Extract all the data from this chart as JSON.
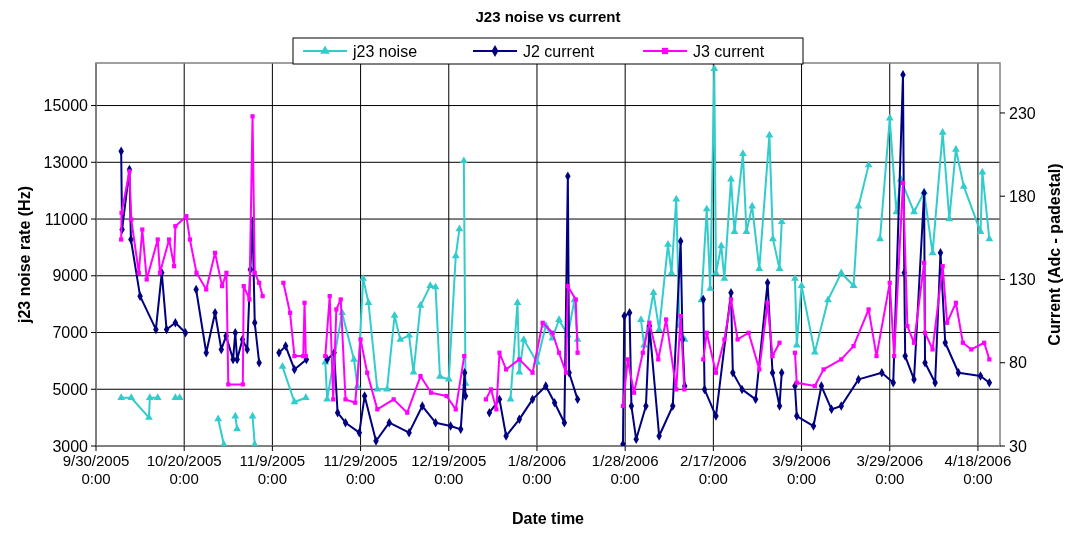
{
  "chart_data": {
    "type": "line",
    "title": "J23 noise vs current",
    "xlabel": "Date time",
    "ylabel": "j23 noise rate (Hz)",
    "y2label": "Current (Adc - padestal)",
    "xlim": [
      "2005-09-30",
      "2006-04-23"
    ],
    "xticks": [
      {
        "value": "2005-09-30",
        "label": "9/30/2005 0:00"
      },
      {
        "value": "2005-10-20",
        "label": "10/20/2005 0:00"
      },
      {
        "value": "2005-11-09",
        "label": "11/9/2005 0:00"
      },
      {
        "value": "2005-11-29",
        "label": "11/29/2005 0:00"
      },
      {
        "value": "2005-12-19",
        "label": "12/19/2005 0:00"
      },
      {
        "value": "2006-01-08",
        "label": "1/8/2006 0:00"
      },
      {
        "value": "2006-01-28",
        "label": "1/28/2006 0:00"
      },
      {
        "value": "2006-02-17",
        "label": "2/17/2006 0:00"
      },
      {
        "value": "2006-03-09",
        "label": "3/9/2006 0:00"
      },
      {
        "value": "2006-03-29",
        "label": "3/29/2006 0:00"
      },
      {
        "value": "2006-04-18",
        "label": "4/18/2006 0:00"
      }
    ],
    "ylim": [
      3000,
      16500
    ],
    "yticks": [
      3000,
      5000,
      7000,
      9000,
      11000,
      13000,
      15000
    ],
    "y2lim": [
      30,
      260
    ],
    "y2ticks": [
      30,
      80,
      130,
      180,
      230
    ],
    "grid": true,
    "legend": "top",
    "line_style": "solid",
    "series": [
      {
        "name": "j23 noise",
        "color": "#33cccc",
        "marker": "triangle",
        "x": [
          "2005-10-05T17:00",
          "2005-10-08",
          "2005-10-12",
          "2005-10-12T05:00",
          "2005-10-14",
          "2005-10-16",
          "2005-10-18",
          "2005-10-19",
          "2005-10-23",
          "2005-10-27T17:00",
          "2005-10-29",
          "2005-10-30T12:00",
          "2005-10-31T14:00",
          "2005-11-01",
          "2005-11-02T12:00",
          "2005-11-04T12:00",
          "2005-11-05",
          "2005-11-08",
          "2005-11-11T07:00",
          "2005-11-14",
          "2005-11-16T14:00",
          "2005-11-19",
          "2005-11-21",
          "2005-11-21T10:00",
          "2005-11-24T19:00",
          "2005-11-27T12:00",
          "2005-11-28T07:00",
          "2005-11-29T14:00",
          "2005-11-30T19:00",
          "2005-12-02T19:00",
          "2005-12-05",
          "2005-12-06T17:00",
          "2005-12-08",
          "2005-12-10",
          "2005-12-11",
          "2005-12-12T14:00",
          "2005-12-14T19:00",
          "2005-12-16",
          "2005-12-17",
          "2005-12-19",
          "2005-12-20T14:00",
          "2005-12-21T10:00",
          "2005-12-22T02:00",
          "2005-12-22T10:00",
          "2005-12-22T19:00",
          "2005-12-28",
          "2006-01-02",
          "2006-01-03T14:00",
          "2006-01-04",
          "2006-01-05",
          "2006-01-08",
          "2006-01-10",
          "2006-01-11T12:00",
          "2006-01-13",
          "2006-01-15",
          "2006-01-16T12:00",
          "2006-01-17T05:00",
          "2006-01-23",
          "2006-01-31T14:00",
          "2006-02-01T07:00",
          "2006-02-03T10:00",
          "2006-02-04T17:00",
          "2006-02-06T17:00",
          "2006-02-07T12:00",
          "2006-02-08T14:00",
          "2006-02-09T07:00",
          "2006-02-10T12:00",
          "2006-02-12T12:00",
          "2006-02-14T07:00",
          "2006-02-15T12:00",
          "2006-02-16T07:00",
          "2006-02-17T05:00",
          "2006-02-17T14:00",
          "2006-02-18T19:00",
          "2006-02-19T12:00",
          "2006-02-21",
          "2006-02-21T19:00",
          "2006-02-23T17:00",
          "2006-02-24T12:00",
          "2006-02-25T19:00",
          "2006-02-27T10:00",
          "2006-03-01T17:00",
          "2006-03-02T12:00",
          "2006-03-04",
          "2006-03-04T12:00",
          "2006-03-06",
          "2006-03-07T12:00",
          "2006-03-07T22:00",
          "2006-03-09",
          "2006-03-12",
          "2006-03-15",
          "2006-03-18",
          "2006-03-20T19:00",
          "2006-03-21T22:00",
          "2006-03-24T05:00",
          "2006-03-26",
          "2006-03-26T19:00",
          "2006-03-29",
          "2006-03-30T12:00",
          "2006-03-31T12:00",
          "2006-04-03T12:00",
          "2006-04-05T19:00",
          "2006-04-07T17:00",
          "2006-04-10",
          "2006-04-11T12:00",
          "2006-04-13",
          "2006-04-14T19:00",
          "2006-04-18T14:00",
          "2006-04-19",
          "2006-04-20T14:00"
        ],
        "values": [
          4700,
          4700,
          4000,
          4700,
          4700,
          null,
          4700,
          4700,
          null,
          3950,
          3050,
          null,
          4050,
          3600,
          null,
          4050,
          3050,
          null,
          5800,
          4550,
          4700,
          null,
          5950,
          4650,
          7700,
          6050,
          5100,
          8900,
          8050,
          5000,
          5000,
          7600,
          6750,
          6900,
          5600,
          7950,
          8650,
          8600,
          5450,
          5350,
          9700,
          10650,
          null,
          13050,
          5200,
          null,
          4650,
          8050,
          5600,
          6750,
          5950,
          7250,
          6800,
          7450,
          6900,
          8150,
          6750,
          null,
          7450,
          6550,
          8400,
          7100,
          10100,
          9100,
          11700,
          7250,
          6750,
          null,
          8150,
          11350,
          8550,
          16300,
          9100,
          10050,
          8900,
          12400,
          10550,
          13300,
          10550,
          11450,
          9250,
          13950,
          10300,
          9250,
          10900,
          null,
          8900,
          6550,
          8650,
          6300,
          8150,
          9100,
          8650,
          11450,
          12900,
          null,
          10300,
          14550,
          11250,
          12400,
          11250,
          11950,
          9800,
          14050,
          11000,
          13450,
          12150,
          10550,
          12650,
          10300
        ]
      },
      {
        "name": "J2 current",
        "color": "#000080",
        "marker": "diamond",
        "axis": "y2",
        "x": [
          "2005-10-05T17:00",
          "2005-10-05T22:00",
          "2005-10-07T14:00",
          "2005-10-07T22:00",
          "2005-10-10",
          "2005-10-13T14:00",
          "2005-10-14T22:00",
          "2005-10-16",
          "2005-10-18",
          "2005-10-20T07:00",
          "2005-10-21T12:00",
          "2005-10-22T17:00",
          "2005-10-25",
          "2005-10-27",
          "2005-10-28T10:00",
          "2005-10-29T12:00",
          "2005-10-31T02:00",
          "2005-10-31T14:00",
          "2005-11-01",
          "2005-11-02T05:00",
          "2005-11-03T07:00",
          "2005-11-04",
          "2005-11-04T12:00",
          "2005-11-05",
          "2005-11-06",
          "2005-11-08",
          "2005-11-10T12:00",
          "2005-11-12",
          "2005-11-14",
          "2005-11-16T17:00",
          "2005-11-19",
          "2005-11-21T10:00",
          "2005-11-23",
          "2005-11-23T19:00",
          "2005-11-25T14:00",
          "2005-11-28T17:00",
          "2005-11-29T22:00",
          "2005-12-02T12:00",
          "2005-12-05T12:00",
          "2005-12-10",
          "2005-12-13",
          "2005-12-16",
          "2005-12-19T10:00",
          "2005-12-21T17:00",
          "2005-12-22T14:00",
          "2005-12-22T19:00",
          "2005-12-25",
          "2005-12-28T05:00",
          "2005-12-30T12:00",
          "2006-01-01",
          "2006-01-04",
          "2006-01-07",
          "2006-01-10",
          "2006-01-12",
          "2006-01-14T05:00",
          "2006-01-15",
          "2006-01-15T07:00",
          "2006-01-17T05:00",
          "2006-01-22",
          "2006-01-27T12:00",
          "2006-01-27T19:00",
          "2006-01-29",
          "2006-01-29T10:00",
          "2006-01-30T12:00",
          "2006-02-01T17:00",
          "2006-02-02T12:00",
          "2006-02-04T17:00",
          "2006-02-07T19:00",
          "2006-02-09T14:00",
          "2006-02-10",
          "2006-02-10T12:00",
          "2006-02-12T12:00",
          "2006-02-14T17:00",
          "2006-02-15",
          "2006-02-17T14:00",
          "2006-02-21",
          "2006-02-21T10:00",
          "2006-02-23T12:00",
          "2006-02-26T14:00",
          "2006-03-01T07:00",
          "2006-03-02T10:00",
          "2006-03-04",
          "2006-03-04T12:00",
          "2006-03-06",
          "2006-03-07T12:00",
          "2006-03-07T22:00",
          "2006-03-11T17:00",
          "2006-03-13T12:00",
          "2006-03-15T19:00",
          "2006-03-18",
          "2006-03-21T22:00",
          "2006-03-27T05:00",
          "2006-03-29T19:00",
          "2006-04-01",
          "2006-04-01T07:00",
          "2006-04-01T12:00",
          "2006-04-03T12:00",
          "2006-04-05T19:00",
          "2006-04-06",
          "2006-04-08T07:00",
          "2006-04-09T12:00",
          "2006-04-10T14:00",
          "2006-04-13T14:00",
          "2006-04-18T14:00",
          "2006-04-20T14:00"
        ],
        "values": [
          207,
          160,
          196,
          154,
          120,
          100,
          134,
          100,
          104,
          98,
          null,
          124,
          86,
          110,
          88,
          96,
          82,
          98,
          82,
          94,
          88,
          136,
          165,
          104,
          80,
          null,
          86,
          90,
          76,
          82,
          null,
          82,
          86,
          50,
          44,
          38,
          60,
          33,
          44,
          38,
          54,
          44,
          42,
          40,
          74,
          60,
          null,
          50,
          58,
          36,
          46,
          58,
          66,
          56,
          44,
          192,
          74,
          58,
          null,
          31,
          108,
          110,
          54,
          34,
          54,
          102,
          36,
          54,
          153,
          94,
          66,
          null,
          118,
          64,
          48,
          122,
          74,
          64,
          58,
          128,
          74,
          54,
          74,
          null,
          66,
          48,
          42,
          66,
          52,
          54,
          70,
          74,
          68,
          253,
          134,
          84,
          70,
          182,
          80,
          68,
          146,
          92,
          74,
          72,
          68
        ]
      },
      {
        "name": "J3 current",
        "color": "#ff00ff",
        "marker": "square",
        "axis": "y2",
        "x": [
          "2005-10-05T17:00",
          "2005-10-05T19:00",
          "2005-10-07T14:00",
          "2005-10-08",
          "2005-10-09T17:00",
          "2005-10-10T12:00",
          "2005-10-11T12:00",
          "2005-10-14",
          "2005-10-14T12:00",
          "2005-10-16T14:00",
          "2005-10-17T17:00",
          "2005-10-18",
          "2005-10-20T12:00",
          "2005-10-21T07:00",
          "2005-10-22T19:00",
          "2005-10-25",
          "2005-10-27",
          "2005-10-28T14:00",
          "2005-10-29T14:00",
          "2005-10-30",
          "2005-11-02T07:00",
          "2005-11-02T12:00",
          "2005-11-03T19:00",
          "2005-11-04T12:00",
          "2005-11-05",
          "2005-11-06",
          "2005-11-06T19:00",
          "2005-11-09",
          "2005-11-11T12:00",
          "2005-11-13",
          "2005-11-14",
          "2005-11-16",
          "2005-11-16T07:00",
          "2005-11-16T14:00",
          "2005-11-19",
          "2005-11-21",
          "2005-11-22",
          "2005-11-22T19:00",
          "2005-11-23T12:00",
          "2005-11-24T12:00",
          "2005-11-25T14:00",
          "2005-11-27T19:00",
          "2005-11-29",
          "2005-11-30T12:00",
          "2005-12-02T19:00",
          "2005-12-06T12:00",
          "2005-12-09T14:00",
          "2005-12-12T14:00",
          "2005-12-15",
          "2005-12-18T12:00",
          "2005-12-20T14:00",
          "2005-12-22T12:00",
          "2005-12-25",
          "2005-12-27T10:00",
          "2005-12-28T14:00",
          "2005-12-29T19:00",
          "2005-12-30T12:00",
          "2006-01-01",
          "2006-01-04",
          "2006-01-07",
          "2006-01-09T07:00",
          "2006-01-11T12:00",
          "2006-01-13",
          "2006-01-14T14:00",
          "2006-01-15",
          "2006-01-16T19:00",
          "2006-01-17T05:00",
          "2006-01-22",
          "2006-01-27T12:00",
          "2006-01-28T14:00",
          "2006-01-30",
          "2006-02-01",
          "2006-02-02T12:00",
          "2006-02-04T12:00",
          "2006-02-06T07:00",
          "2006-02-08T14:00",
          "2006-02-09T14:00",
          "2006-02-10T10:00",
          "2006-02-12T12:00",
          "2006-02-14T17:00",
          "2006-02-15T12:00",
          "2006-02-17T14:00",
          "2006-02-19T12:00",
          "2006-02-21",
          "2006-02-22T12:00",
          "2006-02-25",
          "2006-02-27T10:00",
          "2006-03-01T07:00",
          "2006-03-02T10:00",
          "2006-03-04",
          "2006-03-06",
          "2006-03-07T12:00",
          "2006-03-07T22:00",
          "2006-03-12",
          "2006-03-14",
          "2006-03-18",
          "2006-03-20T19:00",
          "2006-03-24T05:00",
          "2006-03-26",
          "2006-03-29",
          "2006-03-30",
          "2006-04-01",
          "2006-04-02",
          "2006-04-03T12:00",
          "2006-04-05T19:00",
          "2006-04-06",
          "2006-04-07T17:00",
          "2006-04-10",
          "2006-04-11",
          "2006-04-13",
          "2006-04-14T14:00",
          "2006-04-16T12:00",
          "2006-04-19T10:00",
          "2006-04-20T14:00"
        ],
        "values": [
          154,
          170,
          195,
          166,
          134,
          160,
          130,
          154,
          134,
          154,
          138,
          162,
          168,
          154,
          134,
          124,
          146,
          126,
          134,
          67,
          67,
          126,
          118,
          228,
          134,
          128,
          120,
          null,
          128,
          110,
          84,
          84,
          116,
          84,
          null,
          84,
          120,
          58,
          112,
          118,
          58,
          56,
          94,
          74,
          52,
          58,
          50,
          72,
          62,
          60,
          52,
          84,
          null,
          58,
          64,
          52,
          86,
          76,
          82,
          74,
          104,
          98,
          86,
          74,
          126,
          118,
          86,
          null,
          54,
          82,
          62,
          86,
          104,
          82,
          106,
          64,
          108,
          64,
          null,
          82,
          98,
          74,
          94,
          118,
          94,
          98,
          76,
          116,
          84,
          92,
          null,
          86,
          68,
          66,
          76,
          82,
          90,
          112,
          84,
          128,
          84,
          188,
          102,
          92,
          140,
          98,
          88,
          138,
          104,
          116,
          92,
          88,
          92,
          82
        ]
      }
    ]
  }
}
